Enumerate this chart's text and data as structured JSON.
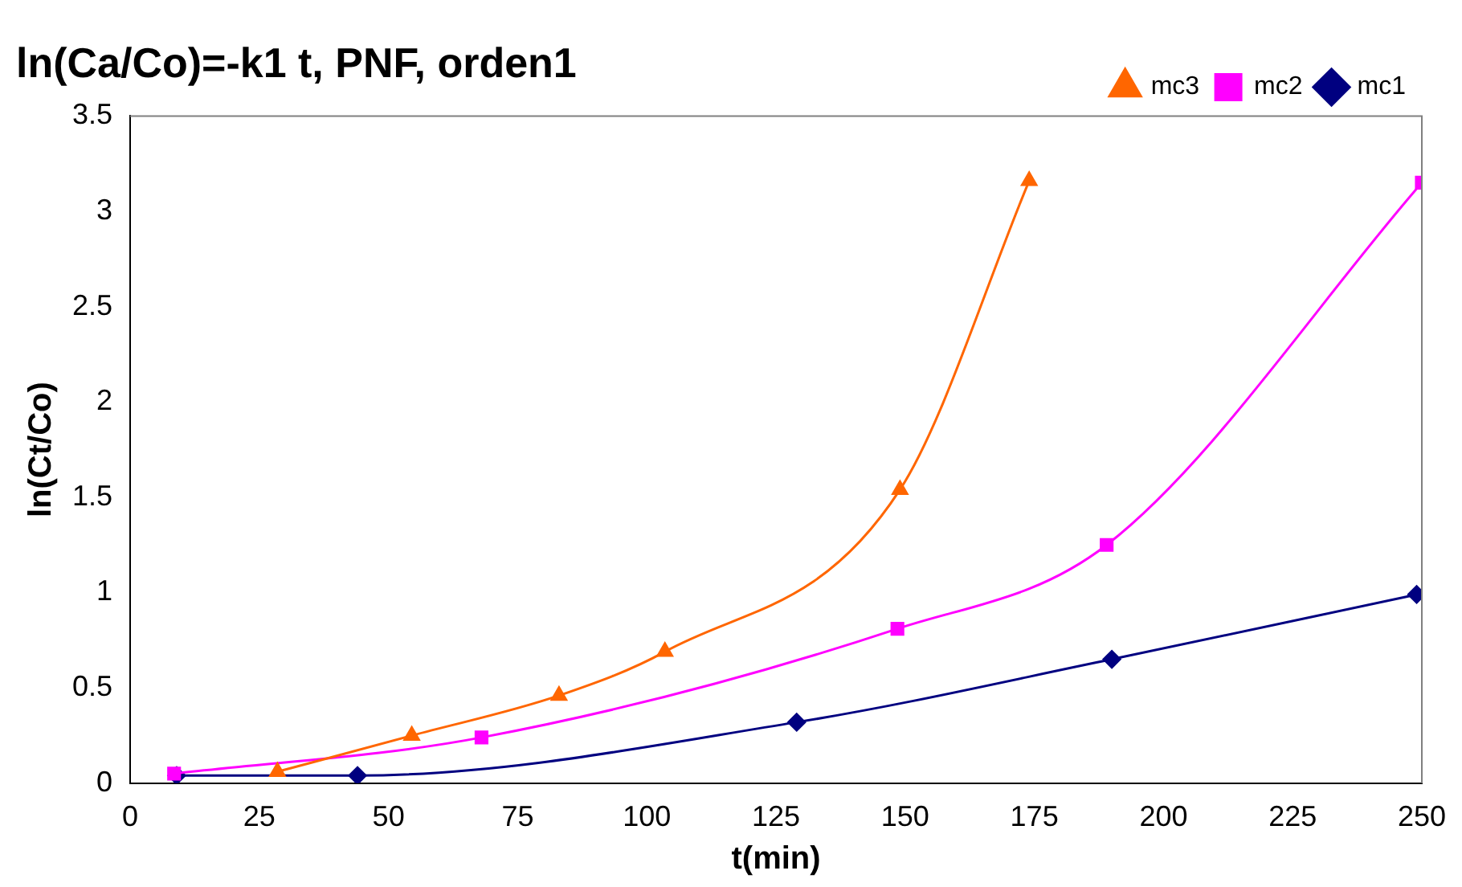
{
  "chart_data": {
    "type": "line",
    "title": "ln(Ca/Co)=-k1 t, PNF, orden1",
    "xlabel": "t(min)",
    "ylabel": "ln(Ct/Co)",
    "xlim": [
      0,
      250
    ],
    "xticks": [
      0,
      25,
      50,
      75,
      100,
      125,
      150,
      175,
      200,
      225,
      250
    ],
    "ylim": [
      0,
      3.5
    ],
    "yticks": [
      0,
      0.5,
      1,
      1.5,
      2,
      2.5,
      3,
      3.5
    ],
    "grid": false,
    "legend": "top right",
    "line_style": "solid",
    "series": [
      {
        "name": "mc1",
        "color": "#000080",
        "marker": "diamond",
        "x": [
          9,
          44,
          129,
          190,
          249
        ],
        "values": [
          0.04,
          0.04,
          0.32,
          0.65,
          0.99
        ]
      },
      {
        "name": "mc2",
        "color": "#ff00ff",
        "marker": "square",
        "x": [
          8.5,
          68,
          148.5,
          189,
          250
        ],
        "values": [
          0.05,
          0.24,
          0.81,
          1.25,
          3.15
        ]
      },
      {
        "name": "mc3",
        "color": "#ff6600",
        "marker": "triangle",
        "x": [
          28.5,
          54.5,
          83,
          103.5,
          149,
          174
        ],
        "values": [
          0.06,
          0.25,
          0.46,
          0.69,
          1.54,
          3.16
        ]
      }
    ]
  }
}
